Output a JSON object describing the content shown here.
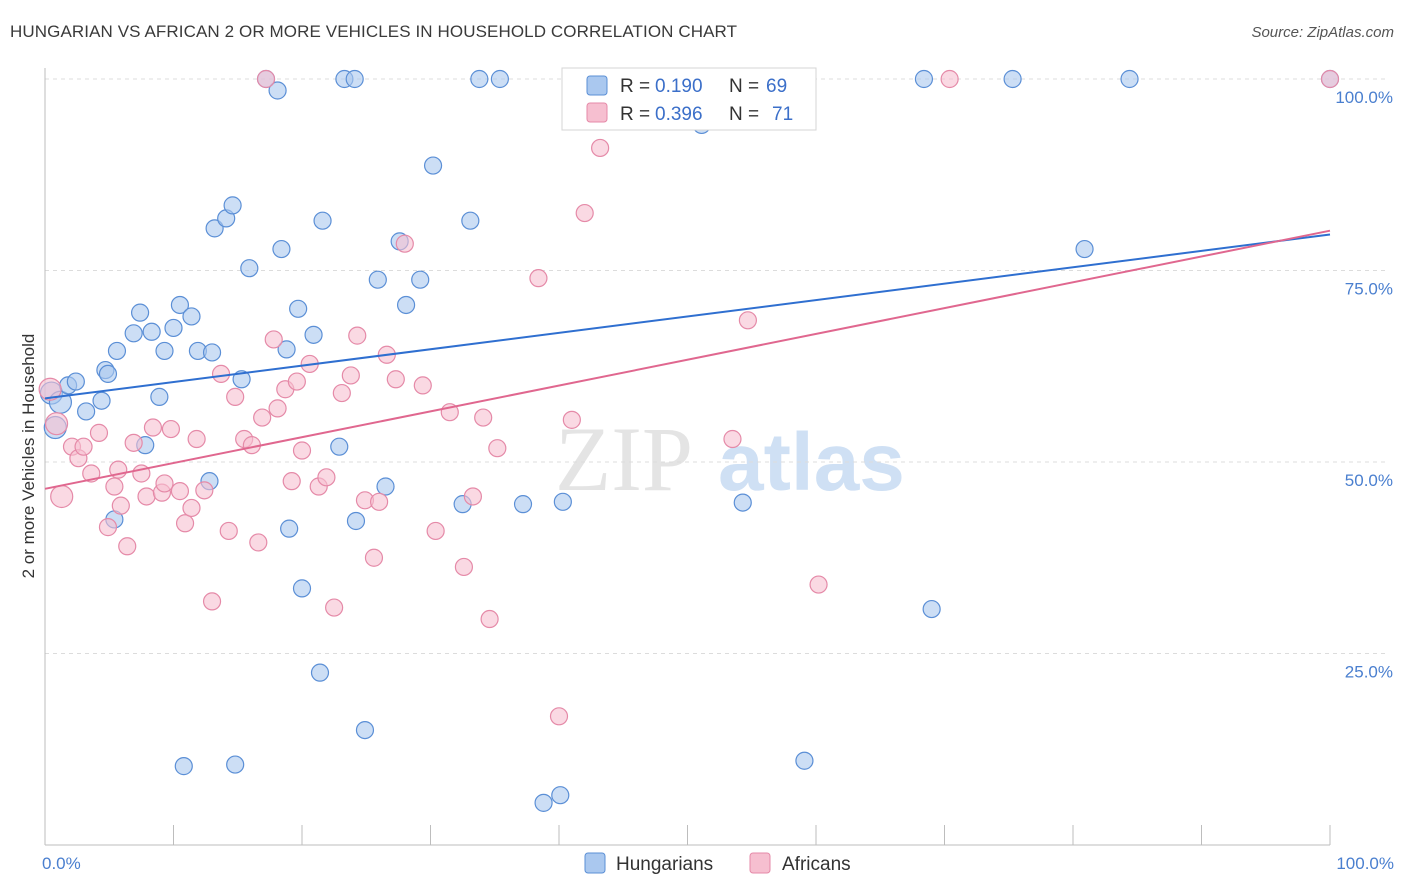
{
  "title": "HUNGARIAN VS AFRICAN 2 OR MORE VEHICLES IN HOUSEHOLD CORRELATION CHART",
  "source": "Source: ZipAtlas.com",
  "watermark": {
    "zip": "ZIP",
    "atlas": "atlas"
  },
  "colors": {
    "blue_fill": "#aac8ef",
    "blue_stroke": "#5b8fd6",
    "blue_line": "#2f6fd0",
    "pink_fill": "#f6bfd0",
    "pink_stroke": "#e58aa8",
    "pink_line": "#e0678f",
    "tick_text": "#4a7fcf",
    "grid": "#dcdcdc"
  },
  "chart_data": {
    "type": "scatter",
    "ylabel": "2 or more Vehicles in Household",
    "xlabel": "",
    "xlim": [
      0,
      100
    ],
    "ylim": [
      0,
      100
    ],
    "x_tick_labels": [
      "0.0%",
      "100.0%"
    ],
    "y_ticks": [
      25,
      50,
      75,
      100
    ],
    "y_tick_labels": [
      "25.0%",
      "50.0%",
      "75.0%",
      "100.0%"
    ],
    "legend": [
      {
        "name": "Hungarians",
        "r_label": "R =",
        "r": "0.190",
        "n_label": "N =",
        "n": "69"
      },
      {
        "name": "Africans",
        "r_label": "R =",
        "r": "0.396",
        "n_label": "N =",
        "n": "71"
      }
    ],
    "series": [
      {
        "name": "Hungarians",
        "trend": {
          "x": [
            0,
            100
          ],
          "y": [
            58.3,
            79.7
          ]
        },
        "points": [
          [
            0.5,
            59.0
          ],
          [
            0.8,
            54.5
          ],
          [
            1.2,
            57.8
          ],
          [
            1.8,
            60.0
          ],
          [
            2.4,
            60.5
          ],
          [
            3.2,
            56.6
          ],
          [
            4.4,
            58.0
          ],
          [
            4.7,
            62.0
          ],
          [
            5.6,
            64.5
          ],
          [
            4.9,
            61.5
          ],
          [
            6.9,
            66.8
          ],
          [
            7.4,
            69.5
          ],
          [
            8.3,
            67.0
          ],
          [
            7.8,
            52.2
          ],
          [
            8.9,
            58.5
          ],
          [
            9.3,
            64.5
          ],
          [
            10.0,
            67.5
          ],
          [
            10.5,
            70.5
          ],
          [
            11.4,
            69.0
          ],
          [
            11.9,
            64.5
          ],
          [
            13.0,
            64.3
          ],
          [
            12.8,
            47.5
          ],
          [
            13.2,
            80.5
          ],
          [
            14.1,
            81.8
          ],
          [
            14.6,
            83.5
          ],
          [
            15.3,
            60.8
          ],
          [
            15.9,
            75.3
          ],
          [
            17.2,
            100.0
          ],
          [
            18.1,
            98.5
          ],
          [
            18.4,
            77.8
          ],
          [
            18.8,
            64.7
          ],
          [
            19.0,
            41.3
          ],
          [
            19.7,
            70.0
          ],
          [
            20.0,
            33.5
          ],
          [
            20.9,
            66.6
          ],
          [
            21.4,
            22.5
          ],
          [
            21.6,
            81.5
          ],
          [
            22.9,
            52.0
          ],
          [
            23.3,
            100.0
          ],
          [
            24.1,
            100.0
          ],
          [
            24.2,
            42.3
          ],
          [
            24.9,
            15.0
          ],
          [
            25.9,
            73.8
          ],
          [
            26.5,
            46.8
          ],
          [
            27.6,
            78.8
          ],
          [
            28.1,
            70.5
          ],
          [
            29.2,
            73.8
          ],
          [
            30.2,
            88.7
          ],
          [
            32.5,
            44.5
          ],
          [
            33.1,
            81.5
          ],
          [
            33.8,
            100.0
          ],
          [
            35.4,
            100.0
          ],
          [
            37.2,
            44.5
          ],
          [
            38.8,
            5.5
          ],
          [
            40.1,
            6.5
          ],
          [
            40.3,
            44.8
          ],
          [
            51.1,
            94.0
          ],
          [
            51.6,
            100.0
          ],
          [
            54.3,
            44.7
          ],
          [
            59.1,
            11.0
          ],
          [
            68.4,
            100.0
          ],
          [
            69.0,
            30.8
          ],
          [
            75.3,
            100.0
          ],
          [
            80.9,
            77.8
          ],
          [
            84.4,
            100.0
          ],
          [
            100.0,
            100.0
          ],
          [
            5.4,
            42.5
          ],
          [
            14.8,
            10.5
          ],
          [
            10.8,
            10.3
          ]
        ]
      },
      {
        "name": "Africans",
        "trend": {
          "x": [
            0,
            100
          ],
          "y": [
            46.5,
            80.2
          ]
        },
        "points": [
          [
            0.4,
            59.5
          ],
          [
            0.9,
            55.0
          ],
          [
            1.3,
            45.5
          ],
          [
            2.1,
            52.0
          ],
          [
            2.6,
            50.5
          ],
          [
            3.0,
            52.0
          ],
          [
            3.6,
            48.5
          ],
          [
            4.2,
            53.8
          ],
          [
            4.9,
            41.5
          ],
          [
            5.4,
            46.8
          ],
          [
            5.7,
            49.0
          ],
          [
            6.4,
            39.0
          ],
          [
            6.9,
            52.5
          ],
          [
            7.5,
            48.5
          ],
          [
            7.9,
            45.5
          ],
          [
            8.4,
            54.5
          ],
          [
            9.1,
            46.0
          ],
          [
            9.8,
            54.3
          ],
          [
            10.5,
            46.2
          ],
          [
            10.9,
            42.0
          ],
          [
            11.4,
            44.0
          ],
          [
            11.8,
            53.0
          ],
          [
            12.4,
            46.3
          ],
          [
            13.0,
            31.8
          ],
          [
            13.7,
            61.5
          ],
          [
            14.3,
            41.0
          ],
          [
            14.8,
            58.5
          ],
          [
            15.5,
            53.0
          ],
          [
            16.1,
            52.2
          ],
          [
            16.6,
            39.5
          ],
          [
            16.9,
            55.8
          ],
          [
            17.2,
            100.0
          ],
          [
            17.8,
            66.0
          ],
          [
            18.1,
            57.0
          ],
          [
            18.7,
            59.5
          ],
          [
            19.2,
            47.5
          ],
          [
            19.6,
            60.5
          ],
          [
            20.0,
            51.5
          ],
          [
            20.6,
            62.8
          ],
          [
            21.3,
            46.8
          ],
          [
            21.9,
            48.0
          ],
          [
            22.5,
            31.0
          ],
          [
            23.1,
            59.0
          ],
          [
            23.8,
            61.3
          ],
          [
            24.3,
            66.5
          ],
          [
            24.9,
            45.0
          ],
          [
            25.6,
            37.5
          ],
          [
            26.0,
            44.8
          ],
          [
            26.6,
            64.0
          ],
          [
            27.3,
            60.8
          ],
          [
            28.0,
            78.5
          ],
          [
            29.4,
            60.0
          ],
          [
            30.4,
            41.0
          ],
          [
            31.5,
            56.5
          ],
          [
            32.6,
            36.3
          ],
          [
            33.3,
            45.5
          ],
          [
            34.1,
            55.8
          ],
          [
            34.6,
            29.5
          ],
          [
            35.2,
            51.8
          ],
          [
            38.4,
            74.0
          ],
          [
            40.0,
            16.8
          ],
          [
            41.0,
            55.5
          ],
          [
            42.0,
            82.5
          ],
          [
            43.2,
            91.0
          ],
          [
            53.5,
            53.0
          ],
          [
            54.7,
            68.5
          ],
          [
            60.2,
            34.0
          ],
          [
            70.4,
            100.0
          ],
          [
            100.0,
            100.0
          ],
          [
            9.3,
            47.2
          ],
          [
            5.9,
            44.3
          ]
        ]
      }
    ]
  }
}
